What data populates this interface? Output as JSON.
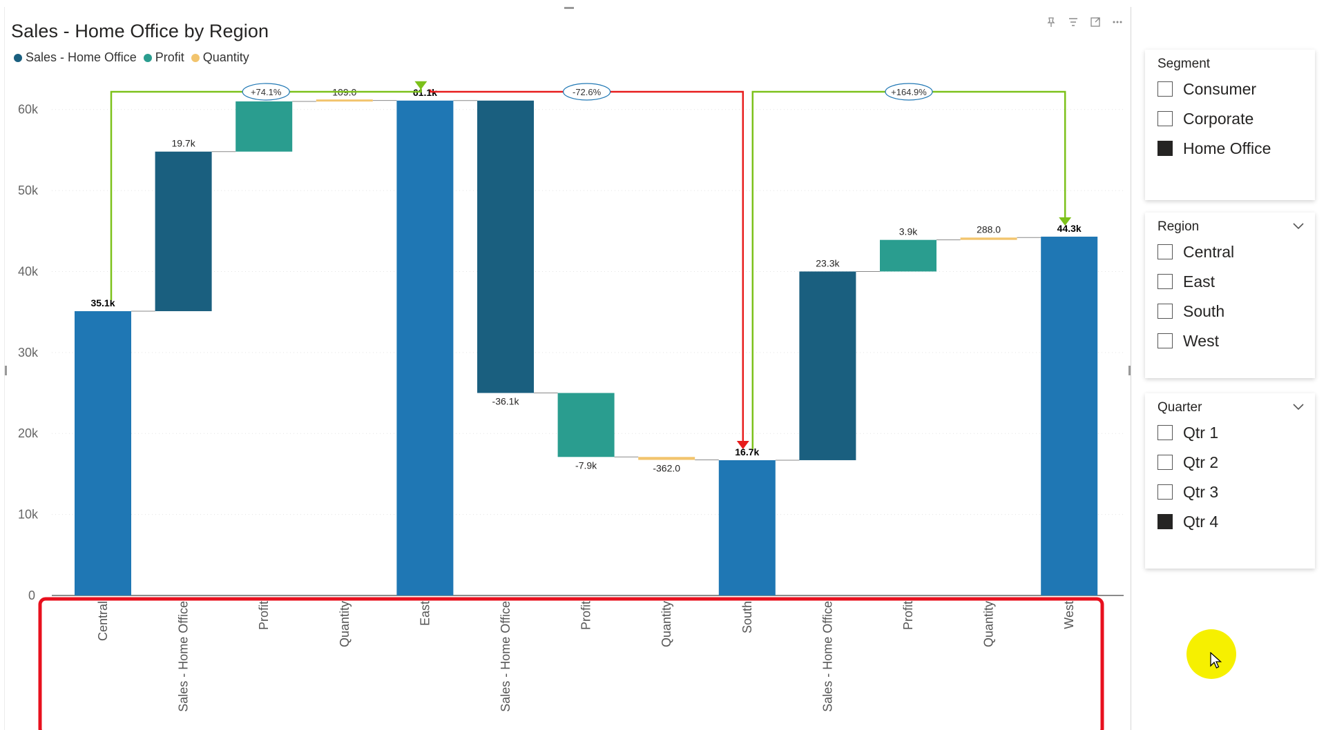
{
  "chart": {
    "title": "Sales - Home Office by Region",
    "legend": [
      {
        "label": "Sales - Home Office",
        "color": "#1a5f7f"
      },
      {
        "label": "Profit",
        "color": "#2a9d8f"
      },
      {
        "label": "Quantity",
        "color": "#f2c46d"
      }
    ],
    "header_icons": [
      "pin-icon",
      "filter-icon",
      "focus-mode-icon",
      "more-options-icon"
    ]
  },
  "chart_data": {
    "type": "bar",
    "subtype": "waterfall",
    "title": "Sales - Home Office by Region",
    "ylim": [
      0,
      65000
    ],
    "yticks": [
      0,
      10000,
      20000,
      30000,
      40000,
      50000,
      60000
    ],
    "ytick_labels": [
      "0",
      "10k",
      "20k",
      "30k",
      "40k",
      "50k",
      "60k"
    ],
    "grid": true,
    "legend_position": "top-left",
    "categories": [
      "Central",
      "Sales - Home Office",
      "Profit",
      "Quantity",
      "East",
      "Sales - Home Office",
      "Profit",
      "Quantity",
      "South",
      "Sales - Home Office",
      "Profit",
      "Quantity",
      "West"
    ],
    "bars": [
      {
        "category": "Central",
        "kind": "total",
        "start": 0,
        "end": 35100,
        "label": "35.1k",
        "color": "#1f77b4"
      },
      {
        "category": "Sales - Home Office",
        "kind": "delta",
        "start": 35100,
        "end": 54800,
        "label": "19.7k",
        "color": "#1a5f7f"
      },
      {
        "category": "Profit",
        "kind": "delta",
        "start": 54800,
        "end": 61000,
        "label": "6.2k",
        "color": "#2a9d8f"
      },
      {
        "category": "Quantity",
        "kind": "delta",
        "start": 61000,
        "end": 61109,
        "label": "109.0",
        "color": "#f2c46d"
      },
      {
        "category": "East",
        "kind": "total",
        "start": 0,
        "end": 61100,
        "label": "61.1k",
        "color": "#1f77b4"
      },
      {
        "category": "Sales - Home Office",
        "kind": "delta",
        "start": 61100,
        "end": 25000,
        "label": "-36.1k",
        "color": "#1a5f7f"
      },
      {
        "category": "Profit",
        "kind": "delta",
        "start": 25000,
        "end": 17100,
        "label": "-7.9k",
        "color": "#2a9d8f"
      },
      {
        "category": "Quantity",
        "kind": "delta",
        "start": 17100,
        "end": 16738,
        "label": "-362.0",
        "color": "#f2c46d"
      },
      {
        "category": "South",
        "kind": "total",
        "start": 0,
        "end": 16700,
        "label": "16.7k",
        "color": "#1f77b4"
      },
      {
        "category": "Sales - Home Office",
        "kind": "delta",
        "start": 16700,
        "end": 40000,
        "label": "23.3k",
        "color": "#1a5f7f"
      },
      {
        "category": "Profit",
        "kind": "delta",
        "start": 40000,
        "end": 43900,
        "label": "3.9k",
        "color": "#2a9d8f"
      },
      {
        "category": "Quantity",
        "kind": "delta",
        "start": 43900,
        "end": 44188,
        "label": "288.0",
        "color": "#f2c46d"
      },
      {
        "category": "West",
        "kind": "total",
        "start": 0,
        "end": 44300,
        "label": "44.3k",
        "color": "#1f77b4"
      }
    ],
    "annotations": [
      {
        "from": "Central",
        "to": "East",
        "label": "+74.1%",
        "color": "#7cc11a"
      },
      {
        "from": "East",
        "to": "South",
        "label": "-72.6%",
        "color": "#e81c1c"
      },
      {
        "from": "South",
        "to": "West",
        "label": "+164.9%",
        "color": "#7cc11a"
      }
    ],
    "highlight_box_color": "#e8101e"
  },
  "slicers": [
    {
      "title": "Segment",
      "has_chevron": false,
      "items": [
        {
          "label": "Consumer",
          "checked": false
        },
        {
          "label": "Corporate",
          "checked": false
        },
        {
          "label": "Home Office",
          "checked": true
        }
      ]
    },
    {
      "title": "Region",
      "has_chevron": true,
      "items": [
        {
          "label": "Central",
          "checked": false
        },
        {
          "label": "East",
          "checked": false
        },
        {
          "label": "South",
          "checked": false
        },
        {
          "label": "West",
          "checked": false
        }
      ]
    },
    {
      "title": "Quarter",
      "has_chevron": true,
      "items": [
        {
          "label": "Qtr 1",
          "checked": false
        },
        {
          "label": "Qtr 2",
          "checked": false
        },
        {
          "label": "Qtr 3",
          "checked": false
        },
        {
          "label": "Qtr 4",
          "checked": true
        }
      ]
    }
  ]
}
